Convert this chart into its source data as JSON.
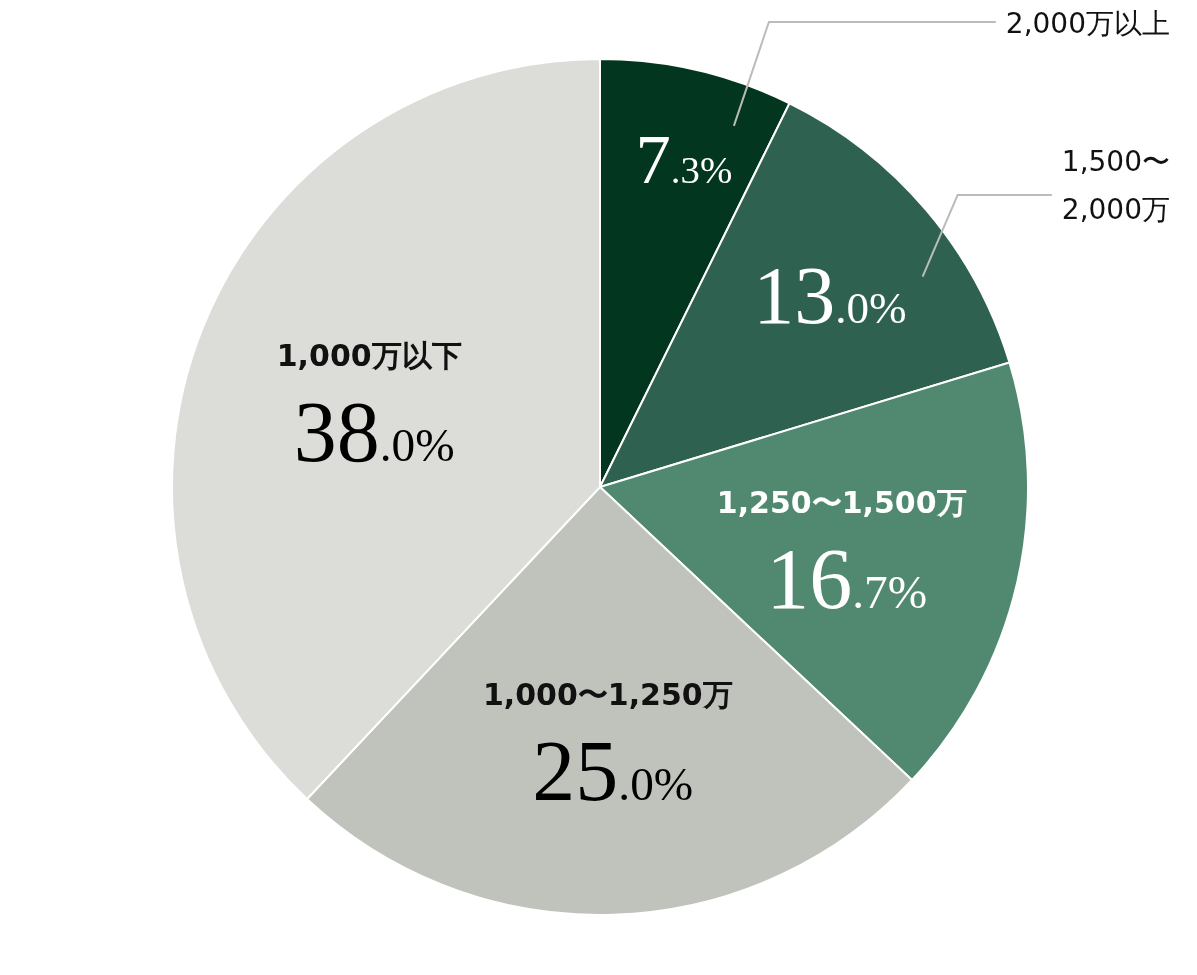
{
  "chart_data": {
    "type": "pie",
    "categories": [
      "2,000万以上",
      "1,500〜2,000万",
      "1,250〜1,500万",
      "1,000〜1,250万",
      "1,000万以下"
    ],
    "values": [
      7.3,
      13.0,
      16.7,
      25.0,
      38.0
    ],
    "value_labels": [
      "7.3%",
      "13.0%",
      "16.7%",
      "25.0%",
      "38.0%"
    ],
    "colors": [
      "#02361f",
      "#2e6150",
      "#508970",
      "#c0c2bc",
      "#dcdcd8"
    ]
  }
}
